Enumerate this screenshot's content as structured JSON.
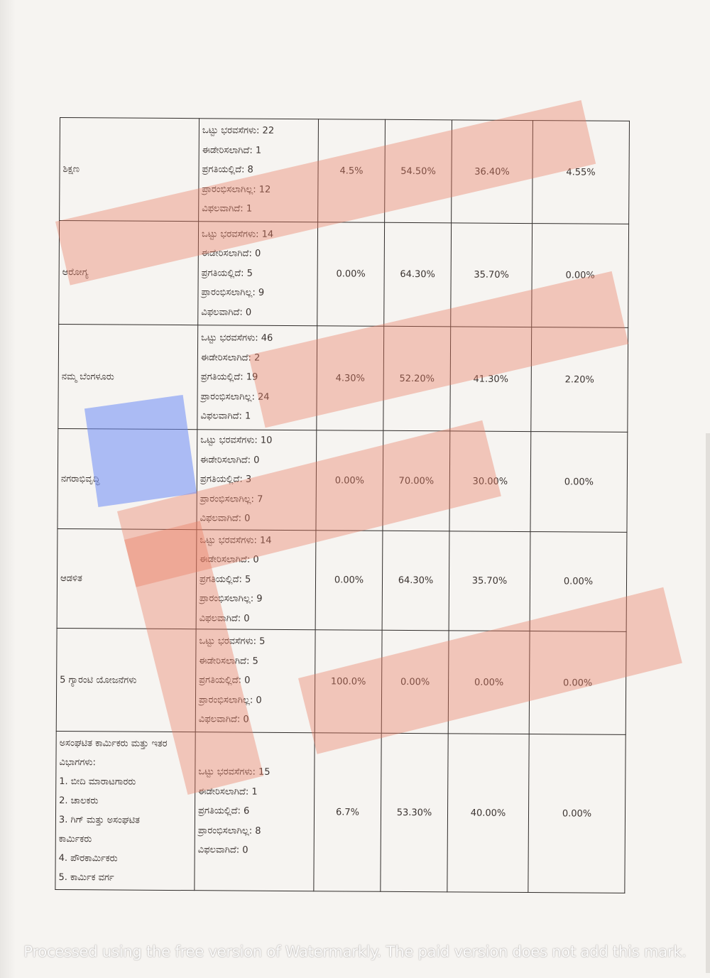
{
  "rows": [
    {
      "department": [
        "ಶಿಕ್ಷಣ"
      ],
      "stats": [
        "ಒಟ್ಟು ಭರವಸೆಗಳು: 22",
        "ಈಡೇರಿಸಲಾಗಿದೆ: 1",
        "ಪ್ರಗತಿಯಲ್ಲಿದೆ: 8",
        "ಪ್ರಾರಂಭಿಸಲಾಗಿಲ್ಲ: 12",
        "ವಿಫಲವಾಗಿದೆ: 1"
      ],
      "pcts": [
        "4.5%",
        "54.50%",
        "36.40%",
        "4.55%"
      ]
    },
    {
      "department": [
        "ಆರೋಗ್ಯ"
      ],
      "stats": [
        "ಒಟ್ಟು ಭರವಸೆಗಳು: 14",
        "ಈಡೇರಿಸಲಾಗಿದೆ: 0",
        "ಪ್ರಗತಿಯಲ್ಲಿದೆ: 5",
        "ಪ್ರಾರಂಭಿಸಲಾಗಿಲ್ಲ: 9",
        "ವಿಫಲವಾಗಿದೆ: 0"
      ],
      "pcts": [
        "0.00%",
        "64.30%",
        "35.70%",
        "0.00%"
      ]
    },
    {
      "department": [
        "ನಮ್ಮ ಬೆಂಗಳೂರು"
      ],
      "stats": [
        "ಒಟ್ಟು ಭರವಸೆಗಳು: 46",
        "ಈಡೇರಿಸಲಾಗಿದೆ: 2",
        "ಪ್ರಗತಿಯಲ್ಲಿದೆ: 19",
        "ಪ್ರಾರಂಭಿಸಲಾಗಿಲ್ಲ: 24",
        "ವಿಫಲವಾಗಿದೆ: 1"
      ],
      "pcts": [
        "4.30%",
        "52.20%",
        "41.30%",
        "2.20%"
      ]
    },
    {
      "department": [
        "ನಗರಾಭಿವೃದ್ಧಿ"
      ],
      "stats": [
        "ಒಟ್ಟು ಭರವಸೆಗಳು: 10",
        "ಈಡೇರಿಸಲಾಗಿದೆ: 0",
        "ಪ್ರಗತಿಯಲ್ಲಿದೆ: 3",
        "ಪ್ರಾರಂಭಿಸಲಾಗಿಲ್ಲ: 7",
        "ವಿಫಲವಾಗಿದೆ: 0"
      ],
      "pcts": [
        "0.00%",
        "70.00%",
        "30.00%",
        "0.00%"
      ]
    },
    {
      "department": [
        "ಆಡಳಿತ"
      ],
      "stats": [
        "ಒಟ್ಟು ಭರವಸೆಗಳು: 14",
        "ಈಡೇರಿಸಲಾಗಿದೆ: 0",
        "ಪ್ರಗತಿಯಲ್ಲಿದೆ: 5",
        "ಪ್ರಾರಂಭಿಸಲಾಗಿಲ್ಲ: 9",
        "ವಿಫಲವಾಗಿದೆ: 0"
      ],
      "pcts": [
        "0.00%",
        "64.30%",
        "35.70%",
        "0.00%"
      ]
    },
    {
      "department": [
        "5 ಗ್ಯಾರಂಟಿ ಯೋಜನೆಗಳು"
      ],
      "stats": [
        "ಒಟ್ಟು ಭರವಸೆಗಳು: 5",
        "ಈಡೇರಿಸಲಾಗಿದೆ: 5",
        "ಪ್ರಗತಿಯಲ್ಲಿದೆ: 0",
        "ಪ್ರಾರಂಭಿಸಲಾಗಿಲ್ಲ: 0",
        "ವಿಫಲವಾಗಿದೆ: 0"
      ],
      "pcts": [
        "100.0%",
        "0.00%",
        "0.00%",
        "0.00%"
      ]
    },
    {
      "department": [
        "ಅಸಂಘಟಿತ ಕಾರ್ಮಿಕರು ಮತ್ತು ಇತರ",
        "ವಿಭಾಗಗಳು:",
        "1. ಬೀದಿ ಮಾರಾಟಗಾರರು",
        "2. ಚಾಲಕರು",
        "3. ಗಿಗ್ ಮತ್ತು ಅಸಂಘಟಿತ",
        "ಕಾರ್ಮಿಕರು",
        "4. ಪೌರಕಾರ್ಮಿಕರು",
        "5. ಕಾರ್ಮಿಕ ವರ್ಗ"
      ],
      "stats": [
        "ಒಟ್ಟು ಭರವಸೆಗಳು: 15",
        "ಈಡೇರಿಸಲಾಗಿದೆ: 1",
        "ಪ್ರಗತಿಯಲ್ಲಿದೆ: 6",
        "ಪ್ರಾರಂಭಿಸಲಾಗಿಲ್ಲ: 8",
        "ವಿಫಲವಾಗಿದೆ: 0"
      ],
      "pcts": [
        "6.7%",
        "53.30%",
        "40.00%",
        "0.00%"
      ]
    }
  ],
  "watermark_text": "Processed using the free version of Watermarkly. The paid version does not add this mark.",
  "colors": {
    "watermark_overlay": "#eb785f",
    "blue_overlay": "#6e8cf5",
    "border": "#2f2b29",
    "text": "#3b3330"
  }
}
